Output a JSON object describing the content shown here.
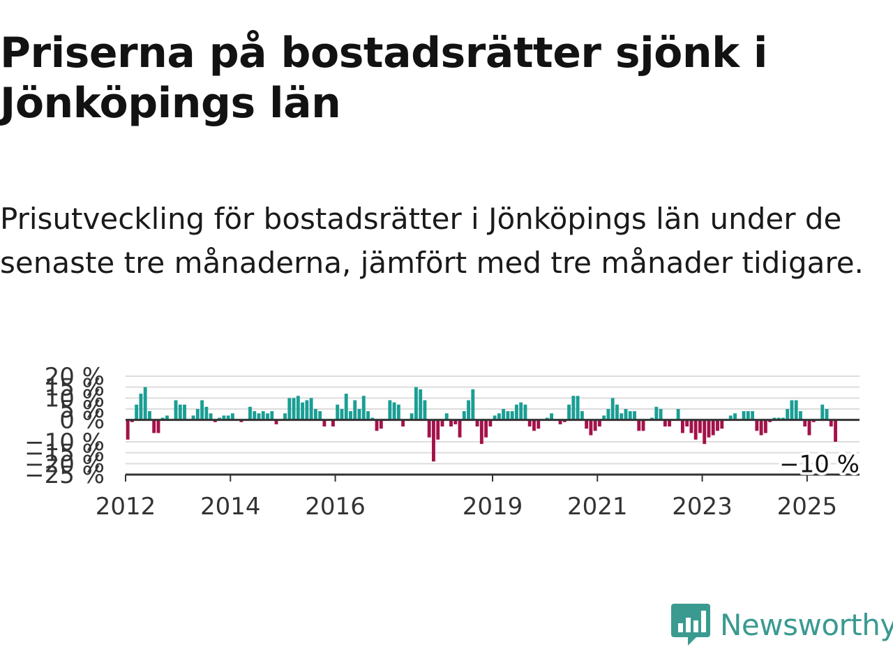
{
  "header": {
    "title": "Priserna på bostadsrätter sjönk i Jönköpings län",
    "subtitle": "Prisutveckling för bostadsrätter i Jönköpings län under de senaste tre månaderna, jämfört med tre månader tidigare."
  },
  "brand": {
    "name": "Newsworthy",
    "icon": "newsworthy-logo-icon",
    "color": "#3a9a90"
  },
  "chart_data": {
    "type": "bar",
    "title": "Priserna på bostadsrätter sjönk i Jönköpings län",
    "subtitle": "Prisutveckling för bostadsrätter i Jönköpings län under de senaste tre månaderna, jämfört med tre månader tidigare.",
    "xlabel": "",
    "ylabel": "",
    "x_start": "2012-01",
    "x_end": "2025-12",
    "xticks": [
      "2012",
      "2014",
      "2016",
      "2019",
      "2021",
      "2023",
      "2025"
    ],
    "yticks": [
      20,
      15,
      10,
      5,
      0,
      -10,
      -15,
      -20,
      -25
    ],
    "ytick_labels": [
      "20 %",
      "15 %",
      "10 %",
      "5 %",
      "0 %",
      "−10 %",
      "−15 %",
      "−20 %",
      "−25 %"
    ],
    "ylim": [
      -25,
      20
    ],
    "grid": true,
    "colors": {
      "positive": "#1a9e94",
      "negative": "#a3124a",
      "zero_line": "#333333",
      "grid": "#dcdcdc"
    },
    "last_value_label": "−10 %",
    "series": [
      {
        "values": [
          -9,
          -1,
          7,
          12,
          15,
          4,
          -6,
          -6,
          1,
          2,
          0,
          9,
          7,
          7,
          0,
          2,
          5,
          9,
          6,
          3,
          -1,
          1,
          2,
          2,
          3,
          0,
          -1,
          0,
          6,
          4,
          3,
          4,
          3,
          4,
          -2,
          0,
          3,
          10,
          10,
          11,
          8,
          9,
          10,
          5,
          4,
          -3,
          0,
          -3,
          7,
          5,
          12,
          4,
          9,
          5,
          11,
          4,
          1,
          -5,
          -4,
          0,
          9,
          8,
          7,
          -3,
          0,
          3,
          15,
          14,
          9,
          -8,
          -19,
          -9,
          -3,
          3,
          -3,
          -2,
          -8,
          4,
          9,
          14,
          -3,
          -11,
          -8,
          -3,
          2,
          3,
          5,
          4,
          4,
          7,
          8,
          7,
          -3,
          -5,
          -4,
          0,
          1,
          3,
          0,
          -2,
          -1,
          7,
          11,
          11,
          4,
          -4,
          -7,
          -5,
          -3,
          2,
          5,
          10,
          7,
          3,
          5,
          4,
          4,
          -5,
          -5,
          0,
          1,
          6,
          5,
          -3,
          -3,
          0,
          5,
          -6,
          -3,
          -6,
          -9,
          -6,
          -11,
          -8,
          -7,
          -5,
          -4,
          0,
          2,
          3,
          0,
          4,
          4,
          4,
          -5,
          -7,
          -6,
          -1,
          1,
          1,
          1,
          5,
          9,
          9,
          4,
          -3,
          -7,
          -1,
          0,
          7,
          5,
          -3,
          -10
        ]
      }
    ]
  }
}
